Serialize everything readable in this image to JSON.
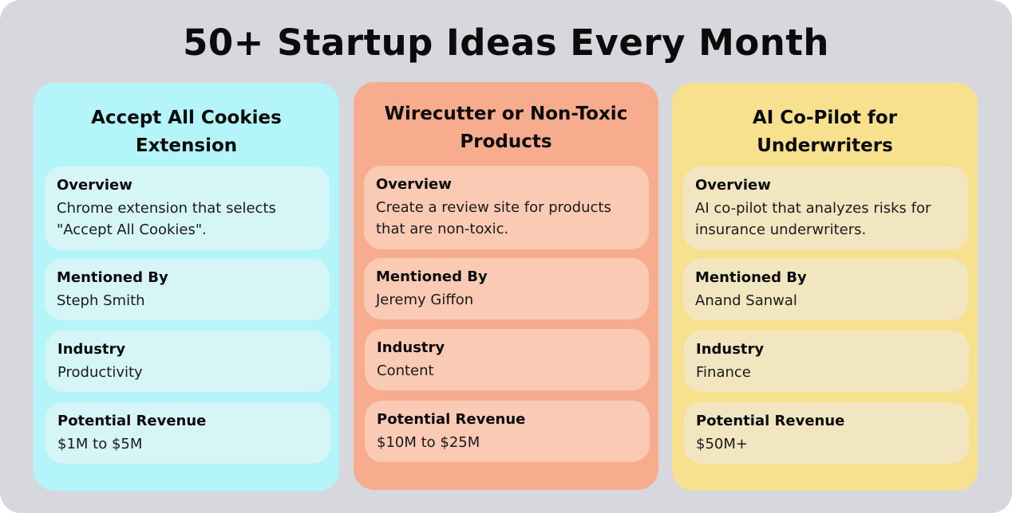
{
  "title": "50+ Startup Ideas Every Month",
  "colors": {
    "background": "#d7d8de",
    "card_cyan": "#b3f5f8",
    "card_orange": "#f8ac8e",
    "card_yellow": "#f7e08e"
  },
  "cards": [
    {
      "title": "Accept All Cookies Extension",
      "overview_label": "Overview",
      "overview": "Chrome extension that selects \"Accept All Cookies\".",
      "mentioned_label": "Mentioned By",
      "mentioned": "Steph Smith",
      "industry_label": "Industry",
      "industry": "Productivity",
      "revenue_label": "Potential Revenue",
      "revenue": "$1M to $5M"
    },
    {
      "title": "Wirecutter or Non-Toxic Products",
      "overview_label": "Overview",
      "overview": "Create a review site for products that are non-toxic.",
      "mentioned_label": "Mentioned By",
      "mentioned": "Jeremy Giffon",
      "industry_label": "Industry",
      "industry": "Content",
      "revenue_label": "Potential Revenue",
      "revenue": "$10M to $25M"
    },
    {
      "title": "AI Co-Pilot for Underwriters",
      "overview_label": "Overview",
      "overview": "AI co-pilot that analyzes risks for insurance underwriters.",
      "mentioned_label": "Mentioned By",
      "mentioned": "Anand Sanwal",
      "industry_label": "Industry",
      "industry": "Finance",
      "revenue_label": "Potential Revenue",
      "revenue": "$50M+"
    }
  ]
}
